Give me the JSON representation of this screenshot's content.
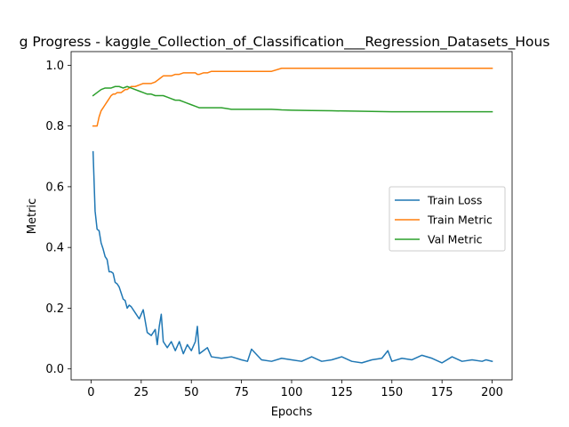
{
  "chart_data": {
    "type": "line",
    "title": "g Progress - kaggle_Collection_of_Classification___Regression_Datasets_Hous",
    "xlabel": "Epochs",
    "ylabel": "Metric",
    "xlim": [
      -9.95,
      209.95
    ],
    "ylim": [
      -0.036,
      1.045
    ],
    "xticks": [
      0,
      25,
      50,
      75,
      100,
      125,
      150,
      175,
      200
    ],
    "yticks": [
      0.0,
      0.2,
      0.4,
      0.6,
      0.8,
      1.0
    ],
    "xtick_labels": [
      "0",
      "25",
      "50",
      "75",
      "100",
      "125",
      "150",
      "175",
      "200"
    ],
    "ytick_labels": [
      "0.0",
      "0.2",
      "0.4",
      "0.6",
      "0.8",
      "1.0"
    ],
    "grid": false,
    "legend_position": "center-right",
    "series": [
      {
        "name": "Train Loss",
        "color": "#1f77b4",
        "x": [
          1,
          2,
          3,
          4,
          5,
          6,
          7,
          8,
          9,
          10,
          11,
          12,
          13,
          14,
          15,
          16,
          17,
          18,
          19,
          20,
          22,
          24,
          26,
          28,
          30,
          32,
          33,
          34,
          35,
          36,
          38,
          40,
          42,
          44,
          46,
          48,
          50,
          52,
          53,
          54,
          56,
          58,
          60,
          65,
          70,
          75,
          78,
          80,
          85,
          90,
          95,
          100,
          105,
          110,
          115,
          120,
          125,
          130,
          135,
          140,
          145,
          148,
          150,
          155,
          160,
          165,
          170,
          175,
          180,
          185,
          190,
          195,
          197,
          200
        ],
        "values": [
          0.715,
          0.52,
          0.46,
          0.455,
          0.415,
          0.395,
          0.37,
          0.36,
          0.32,
          0.32,
          0.315,
          0.285,
          0.28,
          0.27,
          0.25,
          0.23,
          0.225,
          0.2,
          0.21,
          0.205,
          0.185,
          0.165,
          0.195,
          0.12,
          0.11,
          0.13,
          0.08,
          0.14,
          0.18,
          0.09,
          0.07,
          0.09,
          0.06,
          0.09,
          0.05,
          0.08,
          0.06,
          0.09,
          0.14,
          0.05,
          0.06,
          0.07,
          0.04,
          0.035,
          0.04,
          0.03,
          0.025,
          0.065,
          0.03,
          0.025,
          0.035,
          0.03,
          0.025,
          0.04,
          0.025,
          0.03,
          0.04,
          0.025,
          0.02,
          0.03,
          0.035,
          0.06,
          0.025,
          0.035,
          0.03,
          0.045,
          0.035,
          0.02,
          0.04,
          0.025,
          0.03,
          0.025,
          0.03,
          0.025
        ]
      },
      {
        "name": "Train Metric",
        "color": "#ff7f0e",
        "x": [
          1,
          2,
          3,
          4,
          5,
          6,
          7,
          8,
          9,
          10,
          11,
          12,
          13,
          14,
          15,
          16,
          17,
          18,
          19,
          20,
          22,
          24,
          26,
          28,
          30,
          32,
          33,
          34,
          35,
          36,
          38,
          40,
          42,
          44,
          46,
          48,
          50,
          52,
          53,
          54,
          56,
          58,
          60,
          65,
          70,
          75,
          80,
          85,
          90,
          95,
          100,
          110,
          120,
          130,
          140,
          150,
          160,
          170,
          180,
          190,
          200
        ],
        "values": [
          0.8,
          0.8,
          0.8,
          0.83,
          0.85,
          0.86,
          0.87,
          0.88,
          0.89,
          0.9,
          0.905,
          0.905,
          0.91,
          0.91,
          0.91,
          0.915,
          0.92,
          0.92,
          0.925,
          0.93,
          0.93,
          0.935,
          0.94,
          0.94,
          0.94,
          0.945,
          0.95,
          0.955,
          0.96,
          0.965,
          0.965,
          0.965,
          0.97,
          0.97,
          0.975,
          0.975,
          0.975,
          0.975,
          0.97,
          0.97,
          0.975,
          0.975,
          0.98,
          0.98,
          0.98,
          0.98,
          0.98,
          0.98,
          0.98,
          0.99,
          0.99,
          0.99,
          0.99,
          0.99,
          0.99,
          0.99,
          0.99,
          0.99,
          0.99,
          0.99,
          0.99
        ]
      },
      {
        "name": "Val Metric",
        "color": "#2ca02c",
        "x": [
          1,
          3,
          5,
          7,
          9,
          10,
          12,
          14,
          16,
          18,
          20,
          22,
          24,
          26,
          28,
          30,
          32,
          34,
          36,
          38,
          40,
          42,
          44,
          46,
          48,
          50,
          52,
          54,
          56,
          58,
          60,
          65,
          70,
          75,
          80,
          85,
          90,
          95,
          100,
          110,
          120,
          130,
          140,
          150,
          160,
          170,
          180,
          190,
          200
        ],
        "values": [
          0.9,
          0.91,
          0.92,
          0.925,
          0.925,
          0.925,
          0.93,
          0.93,
          0.925,
          0.93,
          0.925,
          0.92,
          0.915,
          0.91,
          0.905,
          0.905,
          0.9,
          0.9,
          0.9,
          0.895,
          0.89,
          0.885,
          0.885,
          0.88,
          0.875,
          0.87,
          0.865,
          0.86,
          0.86,
          0.86,
          0.86,
          0.86,
          0.855,
          0.855,
          0.855,
          0.855,
          0.855,
          0.853,
          0.852,
          0.851,
          0.85,
          0.849,
          0.848,
          0.847,
          0.847,
          0.847,
          0.847,
          0.847,
          0.847
        ]
      }
    ]
  }
}
